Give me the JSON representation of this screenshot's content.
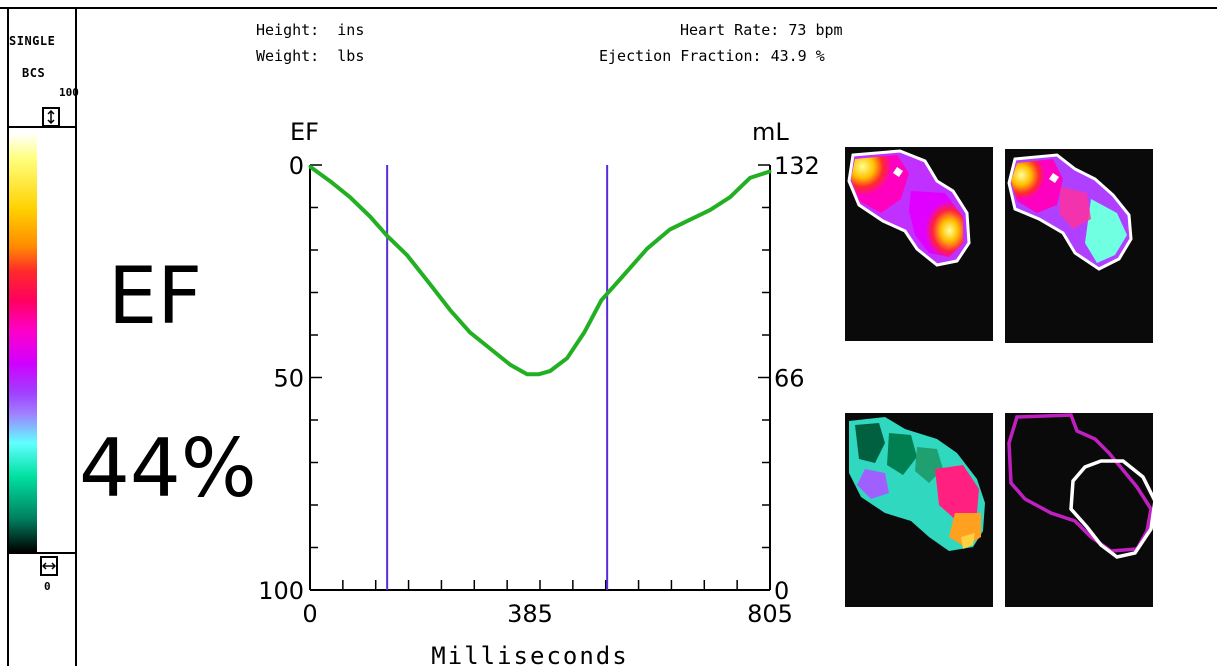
{
  "sidebar": {
    "mode_label": "SINGLE",
    "colormap_label": "BCS",
    "scale_max": "100",
    "scale_min": "0",
    "top_handle_icon": "vertical-resize-icon",
    "bottom_handle_icon": "horizontal-resize-icon"
  },
  "header": {
    "height_text": "Height:  ins",
    "weight_text": "Weight:  lbs",
    "heart_rate_text": "Heart Rate: 73 bpm",
    "ejection_fraction_text": "Ejection Fraction: 43.9 %"
  },
  "summary": {
    "ef_label": "EF",
    "ef_value": "44%"
  },
  "chart_data": {
    "type": "line",
    "left_axis_label": "EF",
    "right_axis_label": "mL",
    "xlabel": "Milliseconds",
    "x_ticks": [
      "0",
      "385",
      "805"
    ],
    "left_ticks": [
      "0",
      "50",
      "100"
    ],
    "right_ticks": [
      "132",
      "66",
      "0"
    ],
    "xlim": [
      0,
      805
    ],
    "ylim_left": [
      0,
      100
    ],
    "ylim_right": [
      0,
      132
    ],
    "left_axis_inverted": true,
    "series": [
      {
        "color": "#22b022",
        "x": [
          0,
          35,
          70,
          105,
          135,
          170,
          210,
          245,
          280,
          315,
          350,
          380,
          400,
          420,
          450,
          480,
          510,
          550,
          590,
          630,
          665,
          700,
          735,
          770,
          805
        ],
        "y": [
          131.5,
          127,
          122,
          116,
          110,
          104,
          95,
          87,
          80,
          75,
          70,
          67,
          67,
          68,
          72,
          80,
          90,
          98,
          106,
          112,
          115,
          118,
          122,
          128,
          130
        ]
      }
    ],
    "markers": [
      {
        "x": 135,
        "color": "#5a2ad8"
      },
      {
        "x": 520,
        "color": "#5a2ad8"
      }
    ],
    "grid": false
  },
  "images": [
    {
      "name": "end-diastole-image"
    },
    {
      "name": "end-systole-image"
    },
    {
      "name": "phase-image"
    },
    {
      "name": "roi-outline-image",
      "outer_color": "#c020c0",
      "inner_color": "#ffffff"
    }
  ]
}
